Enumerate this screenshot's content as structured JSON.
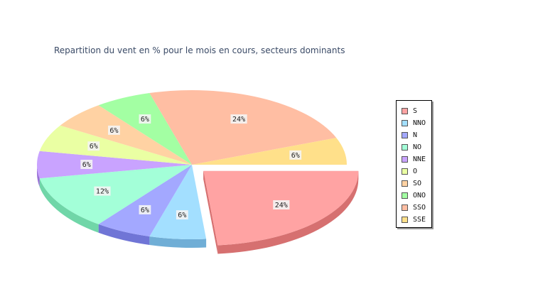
{
  "chart_data": {
    "type": "pie",
    "title": "Repartition du vent en % pour le mois en cours, secteurs dominants",
    "legend_position": "right",
    "exploded_slice": "S",
    "slices": [
      {
        "label": "S",
        "value": 24,
        "display": "24%",
        "color": "#ffa3a3",
        "side": "#d67070"
      },
      {
        "label": "NNO",
        "value": 6,
        "display": "6%",
        "color": "#a3dfff",
        "side": "#70aed6"
      },
      {
        "label": "N",
        "value": 6,
        "display": "6%",
        "color": "#a3a8ff",
        "side": "#7075d6"
      },
      {
        "label": "NO",
        "value": 12,
        "display": "12%",
        "color": "#a3ffd8",
        "side": "#70d6a8"
      },
      {
        "label": "NNE",
        "value": 6,
        "display": "6%",
        "color": "#c9a3ff",
        "side": "#9870d6"
      },
      {
        "label": "O",
        "value": 6,
        "display": "6%",
        "color": "#eaffa3",
        "side": "#bcd670"
      },
      {
        "label": "SO",
        "value": 6,
        "display": "6%",
        "color": "#ffd2a3",
        "side": "#d6a670"
      },
      {
        "label": "ONO",
        "value": 6,
        "display": "6%",
        "color": "#a3ffa3",
        "side": "#70d670"
      },
      {
        "label": "SSO",
        "value": 24,
        "display": "24%",
        "color": "#ffbea3",
        "side": "#d68e70"
      },
      {
        "label": "SSE",
        "value": 6,
        "display": "6%",
        "color": "#ffe08a",
        "side": "#d6b050"
      }
    ]
  }
}
